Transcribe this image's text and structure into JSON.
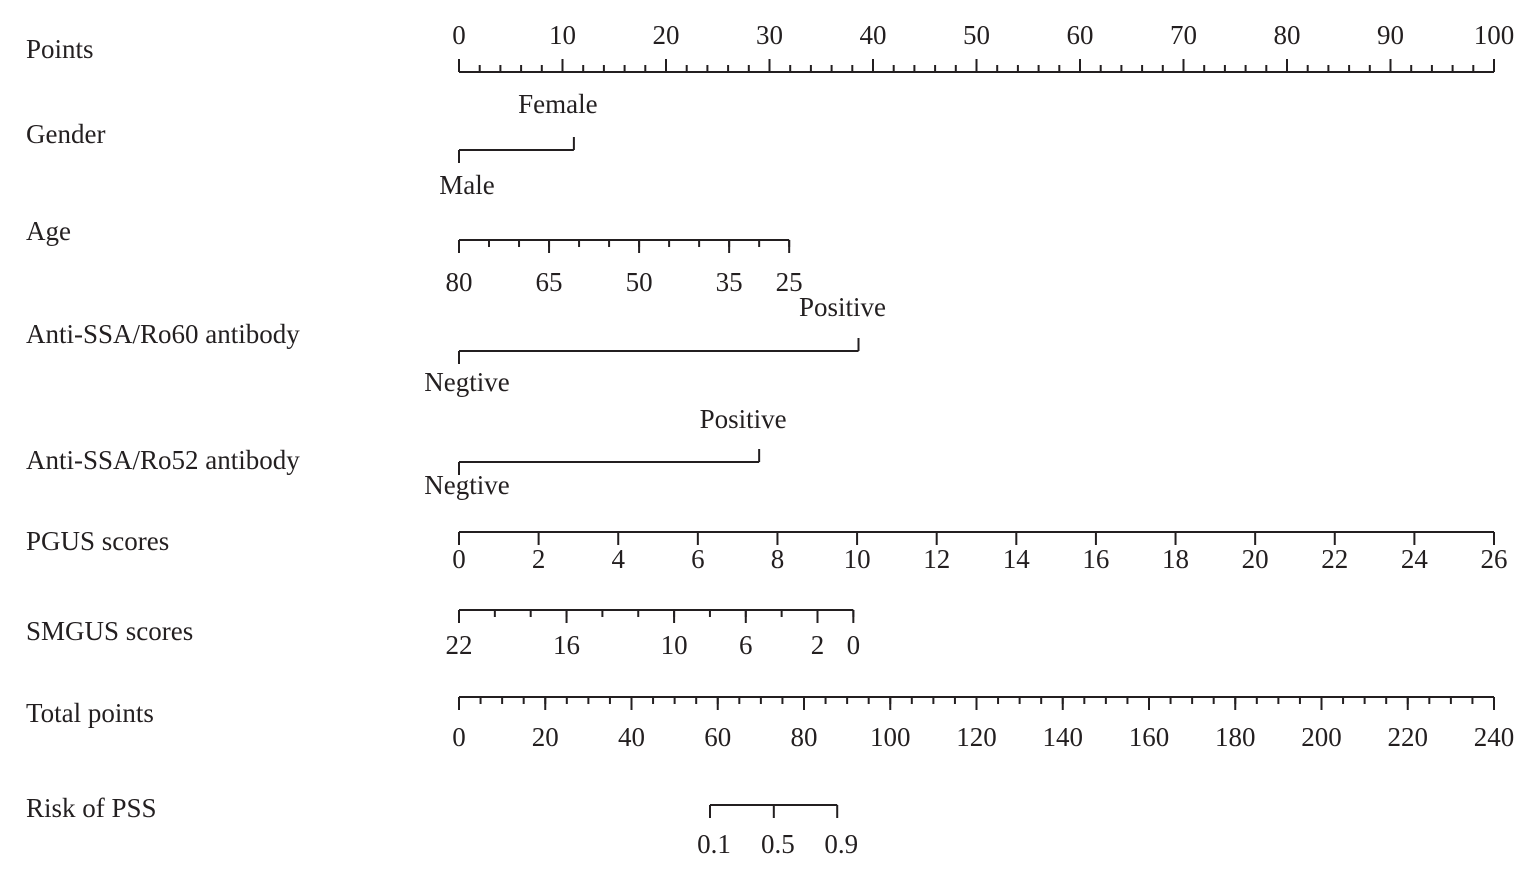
{
  "chart_data": {
    "type": "nomogram",
    "rows": [
      {
        "label": "Points",
        "kind": "axis",
        "lim": [
          0,
          100
        ],
        "points_lim": [
          0,
          100
        ],
        "ticks": [
          0,
          10,
          20,
          30,
          40,
          50,
          60,
          70,
          80,
          90,
          100
        ],
        "minor_step": 2
      },
      {
        "label": "Gender",
        "kind": "binary",
        "levels": [
          "Male",
          "Female"
        ],
        "points": [
          0,
          11.1
        ]
      },
      {
        "label": "Age",
        "kind": "axis",
        "lim": [
          80,
          25
        ],
        "points_lim": [
          0,
          31.9
        ],
        "ticks": [
          80,
          65,
          50,
          35,
          25
        ],
        "minor_step": 5
      },
      {
        "label": "Anti-SSA/Ro60 antibody",
        "kind": "binary",
        "levels": [
          "Negtive",
          "Positive"
        ],
        "points": [
          0,
          38.6
        ]
      },
      {
        "label": "Anti-SSA/Ro52 antibody",
        "kind": "binary",
        "levels": [
          "Negtive",
          "Positive"
        ],
        "points": [
          0,
          29.0
        ]
      },
      {
        "label": "PGUS scores",
        "kind": "axis",
        "lim": [
          0,
          26
        ],
        "points_lim": [
          0,
          100
        ],
        "ticks": [
          0,
          2,
          4,
          6,
          8,
          10,
          12,
          14,
          16,
          18,
          20,
          22,
          24,
          26
        ]
      },
      {
        "label": "SMGUS scores",
        "kind": "axis",
        "lim": [
          22,
          0
        ],
        "points_lim": [
          0,
          38.1
        ],
        "ticks": [
          22,
          16,
          10,
          6,
          2,
          0
        ],
        "minor_step": 2
      },
      {
        "label": "Total points",
        "kind": "axis",
        "lim": [
          0,
          240
        ],
        "points_lim": [
          0,
          100
        ],
        "ticks": [
          0,
          20,
          40,
          60,
          80,
          100,
          120,
          140,
          160,
          180,
          200,
          220,
          240
        ],
        "minor_step": 5
      },
      {
        "label": "Risk of PSS",
        "kind": "risk",
        "ticks": [
          0.1,
          0.5,
          0.9
        ],
        "total_points": [
          58.2,
          73.0,
          87.7
        ]
      }
    ]
  }
}
